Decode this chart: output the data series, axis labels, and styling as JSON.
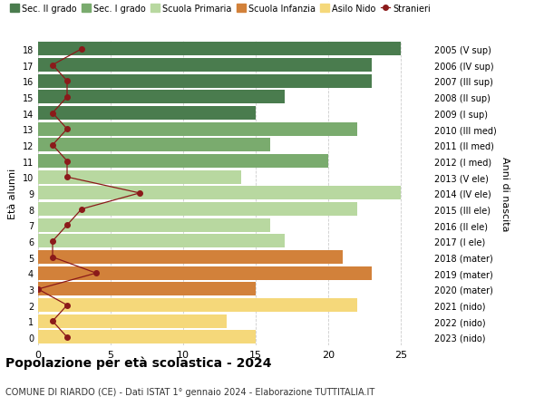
{
  "ages": [
    18,
    17,
    16,
    15,
    14,
    13,
    12,
    11,
    10,
    9,
    8,
    7,
    6,
    5,
    4,
    3,
    2,
    1,
    0
  ],
  "years": [
    "2005 (V sup)",
    "2006 (IV sup)",
    "2007 (III sup)",
    "2008 (II sup)",
    "2009 (I sup)",
    "2010 (III med)",
    "2011 (II med)",
    "2012 (I med)",
    "2013 (V ele)",
    "2014 (IV ele)",
    "2015 (III ele)",
    "2016 (II ele)",
    "2017 (I ele)",
    "2018 (mater)",
    "2019 (mater)",
    "2020 (mater)",
    "2021 (nido)",
    "2022 (nido)",
    "2023 (nido)"
  ],
  "bar_values": [
    25,
    23,
    23,
    17,
    15,
    22,
    16,
    20,
    14,
    25,
    22,
    16,
    17,
    21,
    23,
    15,
    22,
    13,
    15
  ],
  "bar_colors": [
    "#4a7c4e",
    "#4a7c4e",
    "#4a7c4e",
    "#4a7c4e",
    "#4a7c4e",
    "#7aab6e",
    "#7aab6e",
    "#7aab6e",
    "#b8d8a0",
    "#b8d8a0",
    "#b8d8a0",
    "#b8d8a0",
    "#b8d8a0",
    "#d2813a",
    "#d2813a",
    "#d2813a",
    "#f5d87a",
    "#f5d87a",
    "#f5d87a"
  ],
  "stranieri_values": [
    3,
    1,
    2,
    2,
    1,
    2,
    1,
    2,
    2,
    7,
    3,
    2,
    1,
    1,
    4,
    0,
    2,
    1,
    2
  ],
  "legend_labels": [
    "Sec. II grado",
    "Sec. I grado",
    "Scuola Primaria",
    "Scuola Infanzia",
    "Asilo Nido",
    "Stranieri"
  ],
  "legend_colors": [
    "#4a7c4e",
    "#7aab6e",
    "#b8d8a0",
    "#d2813a",
    "#f5d87a",
    "#8b1a1a"
  ],
  "stranieri_line_color": "#8b1a1a",
  "stranieri_marker_color": "#8b1a1a",
  "title": "Popolazione per età scolastica - 2024",
  "subtitle": "COMUNE DI RIARDO (CE) - Dati ISTAT 1° gennaio 2024 - Elaborazione TUTTITALIA.IT",
  "ylabel": "Età alunni",
  "right_ylabel": "Anni di nascita",
  "xlabel_ticks": [
    0,
    5,
    10,
    15,
    20,
    25
  ],
  "xlim": [
    0,
    27
  ],
  "background_color": "#ffffff",
  "grid_color": "#cccccc"
}
